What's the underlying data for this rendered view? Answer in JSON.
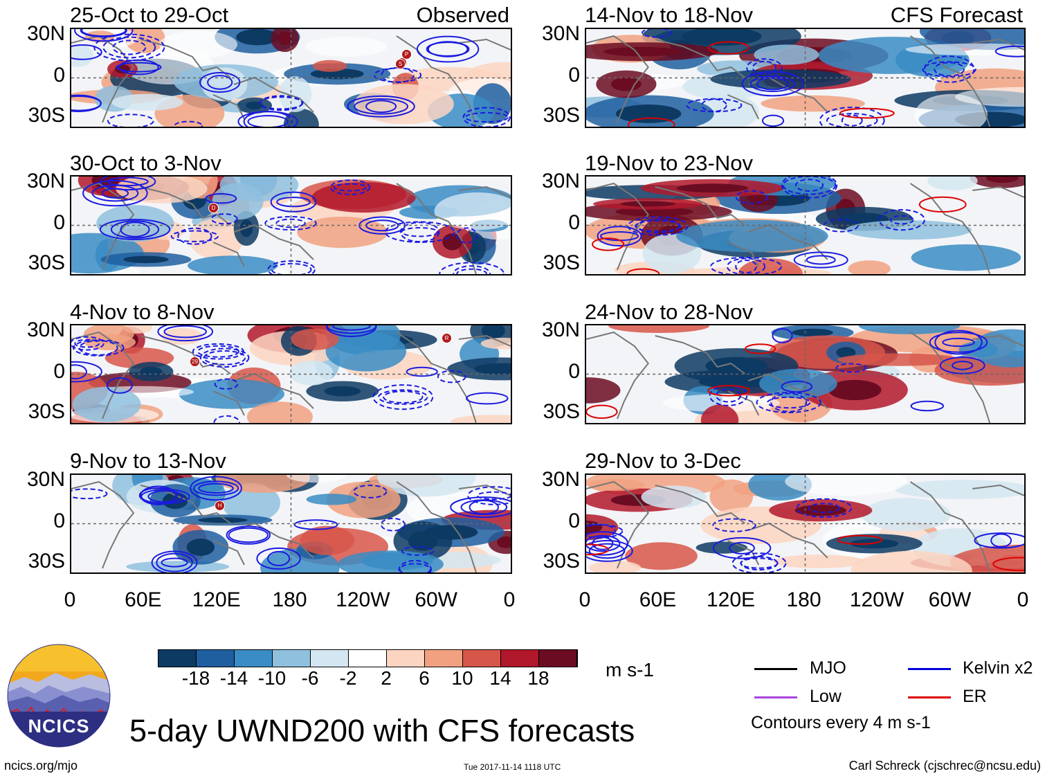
{
  "panels_left": [
    {
      "title": "25-Oct to 29-Oct",
      "label": "Observed"
    },
    {
      "title": "30-Oct to 3-Nov",
      "label": ""
    },
    {
      "title": "4-Nov to 8-Nov",
      "label": ""
    },
    {
      "title": "9-Nov to 13-Nov",
      "label": ""
    }
  ],
  "panels_right": [
    {
      "title": "14-Nov to 18-Nov",
      "label": "CFS Forecast"
    },
    {
      "title": "19-Nov to 23-Nov",
      "label": ""
    },
    {
      "title": "24-Nov to 28-Nov",
      "label": ""
    },
    {
      "title": "29-Nov to 3-Dec",
      "label": ""
    }
  ],
  "lat_labels": [
    "30N",
    "0",
    "30S"
  ],
  "lon_labels": [
    "0",
    "60E",
    "120E",
    "180",
    "120W",
    "60W",
    "0"
  ],
  "colorbar": {
    "levels": [
      "-18",
      "-14",
      "-10",
      "-6",
      "-2",
      "2",
      "6",
      "10",
      "14",
      "18"
    ],
    "colors": [
      "#0d3a63",
      "#1f5fa0",
      "#3a8cc4",
      "#8fc0de",
      "#d4e6f1",
      "#ffffff",
      "#fbd5c1",
      "#f1a180",
      "#d7564a",
      "#b1182b",
      "#6b0c22"
    ],
    "units": "m s-1"
  },
  "legend": {
    "items": [
      {
        "label": "MJO",
        "color": "#000000"
      },
      {
        "label": "Kelvin x2",
        "color": "#0000dd"
      },
      {
        "label": "Low",
        "color": "#aa44dd"
      },
      {
        "label": "ER",
        "color": "#dd0000"
      }
    ],
    "contour_note": "Contours every 4 m s-1"
  },
  "logo_text": "NCICS",
  "main_title": "5-day UWND200 with CFS forecasts",
  "footer": {
    "url": "ncics.org/mjo",
    "timestamp": "Tue 2017-11-14 1118 UTC",
    "credit": "Carl Schreck (cjschrec@ncsu.edu)"
  },
  "storm_markers": [
    {
      "panel": 0,
      "labels": [
        "P",
        "S",
        "S"
      ]
    },
    {
      "panel": 1,
      "labels": [
        "D"
      ]
    },
    {
      "panel": 2,
      "labels": [
        "R",
        "29"
      ]
    },
    {
      "panel": 3,
      "labels": [
        "H"
      ]
    }
  ],
  "chart_data": {
    "type": "heatmap",
    "title": "5-day UWND200 with CFS forecasts",
    "variable": "200-hPa zonal wind anomaly (shaded) with filtered wave contours",
    "units": "m s-1",
    "x_ticks": [
      "0",
      "60E",
      "120E",
      "180",
      "120W",
      "60W",
      "0"
    ],
    "y_ticks": [
      "30N",
      "0",
      "30S"
    ],
    "x_range_deg": [
      0,
      360
    ],
    "y_range_deg": [
      -40,
      40
    ],
    "color_levels": [
      -18,
      -14,
      -10,
      -6,
      -2,
      2,
      6,
      10,
      14,
      18
    ],
    "panels": [
      {
        "period": "25-Oct to 29-Oct",
        "source": "Observed"
      },
      {
        "period": "30-Oct to 3-Nov",
        "source": "Observed"
      },
      {
        "period": "4-Nov to 8-Nov",
        "source": "Observed"
      },
      {
        "period": "9-Nov to 13-Nov",
        "source": "Observed"
      },
      {
        "period": "14-Nov to 18-Nov",
        "source": "CFS Forecast"
      },
      {
        "period": "19-Nov to 23-Nov",
        "source": "CFS Forecast"
      },
      {
        "period": "24-Nov to 28-Nov",
        "source": "CFS Forecast"
      },
      {
        "period": "29-Nov to 3-Dec",
        "source": "CFS Forecast"
      }
    ],
    "contour_interval": "4 m s-1"
  }
}
